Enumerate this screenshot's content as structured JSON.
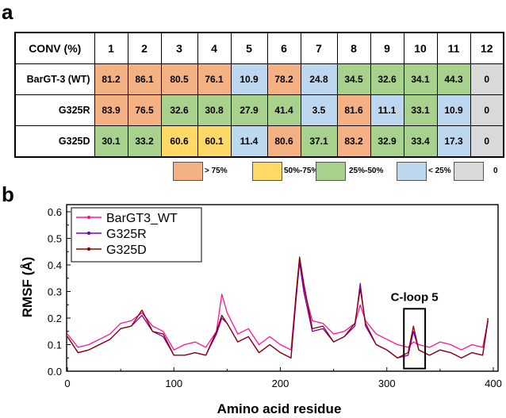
{
  "panel_a_label": "a",
  "panel_b_label": "b",
  "table": {
    "corner": "CONV (%)",
    "columns": [
      "1",
      "2",
      "3",
      "4",
      "5",
      "6",
      "7",
      "8",
      "9",
      "10",
      "11",
      "12"
    ],
    "rows": [
      {
        "name": "BarGT-3 (WT)",
        "values": [
          "81.2",
          "86.1",
          "80.5",
          "76.1",
          "10.9",
          "78.2",
          "24.8",
          "34.5",
          "32.6",
          "34.1",
          "44.3",
          "0"
        ]
      },
      {
        "name": "G325R",
        "values": [
          "83.9",
          "76.5",
          "32.6",
          "30.8",
          "27.9",
          "41.4",
          "3.5",
          "81.6",
          "11.1",
          "33.1",
          "10.9",
          "0"
        ]
      },
      {
        "name": "G325D",
        "values": [
          "30.1",
          "33.2",
          "60.6",
          "60.1",
          "11.4",
          "80.6",
          "37.1",
          "83.2",
          "32.9",
          "33.4",
          "17.3",
          "0"
        ]
      }
    ],
    "colors": {
      "gt75": "#f4b183",
      "r50_75": "#ffd966",
      "r25_50": "#a9d18e",
      "lt25": "#bdd7ee",
      "zero": "#d9d9d9"
    }
  },
  "color_legend": [
    {
      "label": "> 75%",
      "color": "#f4b183"
    },
    {
      "label": "50%-75%",
      "color": "#ffd966"
    },
    {
      "label": "25%-50%",
      "color": "#a9d18e"
    },
    {
      "label": "< 25%",
      "color": "#bdd7ee"
    },
    {
      "label": "0",
      "color": "#d9d9d9"
    }
  ],
  "chart_data": {
    "type": "line",
    "title": "",
    "xlabel": "Amino acid residue",
    "ylabel": "RMSF (Å)",
    "xlim": [
      0,
      400
    ],
    "ylim": [
      0.0,
      0.65
    ],
    "xticks": [
      "0",
      "100",
      "200",
      "300",
      "400"
    ],
    "yticks": [
      "0.0",
      "0.1",
      "0.2",
      "0.3",
      "0.4",
      "0.5",
      "0.6"
    ],
    "legend_position": "top-left",
    "annotation": "C-loop 5",
    "annotation_box_x": [
      316,
      336
    ],
    "annotation_box_y": [
      0.01,
      0.235
    ],
    "x": [
      0,
      10,
      20,
      30,
      40,
      50,
      60,
      70,
      80,
      90,
      100,
      110,
      120,
      130,
      140,
      145,
      150,
      160,
      170,
      180,
      190,
      200,
      210,
      215,
      218,
      222,
      230,
      240,
      250,
      260,
      270,
      275,
      280,
      290,
      300,
      310,
      320,
      325,
      330,
      340,
      350,
      360,
      370,
      380,
      390,
      395
    ],
    "series": [
      {
        "name": "BarGT3_WT",
        "color": "#ff1493",
        "values": [
          0.14,
          0.09,
          0.1,
          0.12,
          0.14,
          0.18,
          0.19,
          0.22,
          0.17,
          0.15,
          0.08,
          0.1,
          0.11,
          0.09,
          0.15,
          0.29,
          0.22,
          0.14,
          0.16,
          0.1,
          0.13,
          0.1,
          0.08,
          0.3,
          0.42,
          0.31,
          0.19,
          0.18,
          0.14,
          0.15,
          0.18,
          0.25,
          0.19,
          0.14,
          0.12,
          0.1,
          0.09,
          0.11,
          0.1,
          0.09,
          0.11,
          0.1,
          0.08,
          0.1,
          0.09,
          0.19
        ]
      },
      {
        "name": "G325R",
        "color": "#7b00b4",
        "values": [
          0.13,
          0.07,
          0.08,
          0.1,
          0.12,
          0.16,
          0.17,
          0.21,
          0.15,
          0.13,
          0.06,
          0.06,
          0.07,
          0.06,
          0.14,
          0.2,
          0.18,
          0.11,
          0.13,
          0.07,
          0.1,
          0.07,
          0.05,
          0.28,
          0.41,
          0.3,
          0.15,
          0.16,
          0.11,
          0.13,
          0.17,
          0.33,
          0.17,
          0.1,
          0.08,
          0.05,
          0.06,
          0.15,
          0.08,
          0.06,
          0.08,
          0.07,
          0.05,
          0.07,
          0.06,
          0.19
        ]
      },
      {
        "name": "G325D",
        "color": "#8b0000",
        "values": [
          0.13,
          0.07,
          0.08,
          0.1,
          0.12,
          0.16,
          0.17,
          0.23,
          0.15,
          0.14,
          0.06,
          0.06,
          0.07,
          0.06,
          0.15,
          0.21,
          0.18,
          0.11,
          0.13,
          0.07,
          0.1,
          0.07,
          0.05,
          0.3,
          0.43,
          0.33,
          0.16,
          0.17,
          0.11,
          0.13,
          0.18,
          0.31,
          0.18,
          0.1,
          0.08,
          0.05,
          0.07,
          0.17,
          0.08,
          0.06,
          0.08,
          0.07,
          0.05,
          0.07,
          0.06,
          0.2
        ]
      }
    ]
  }
}
